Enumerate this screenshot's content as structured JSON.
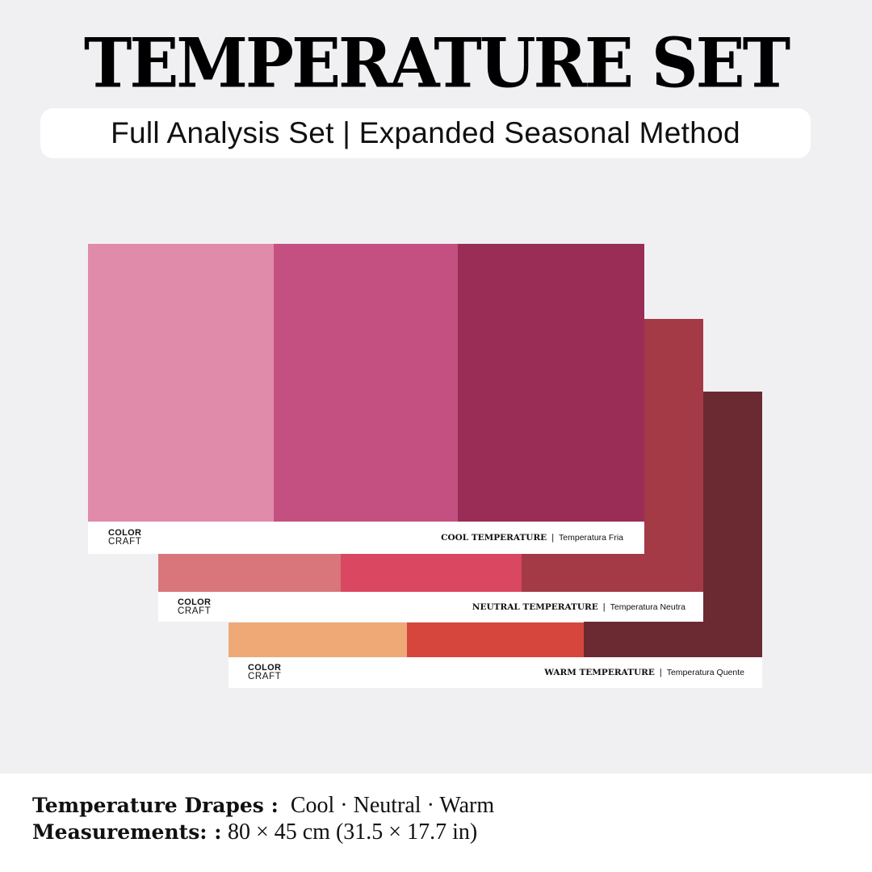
{
  "header": {
    "title": "TEMPERATURE SET",
    "subtitle": "Full Analysis Set | Expanded Seasonal Method"
  },
  "drapes": {
    "warm": {
      "brand_line1": "COLOR",
      "brand_line2": "CRAFT",
      "label": "WARM TEMPERATURE",
      "separator": "|",
      "sublabel": "Temperatura Quente",
      "colors": [
        "#eea977",
        "#d6463c",
        "#6b2a32"
      ]
    },
    "neutral": {
      "brand_line1": "COLOR",
      "brand_line2": "CRAFT",
      "label": "NEUTRAL TEMPERATURE",
      "separator": "|",
      "sublabel": "Temperatura Neutra",
      "colors": [
        "#d8767c",
        "#da4760",
        "#a33a46"
      ]
    },
    "cool": {
      "brand_line1": "COLOR",
      "brand_line2": "CRAFT",
      "label": "COOL TEMPERATURE",
      "separator": "|",
      "sublabel": "Temperatura Fria",
      "colors": [
        "#e08ba9",
        "#c45081",
        "#9a2d56"
      ]
    }
  },
  "specs": {
    "drapes_key": "Temperature Drapes :",
    "drapes_value": "Cool · Neutral · Warm",
    "measurements_key": "Measurements: :",
    "measurements_value": "80 × 45 cm (31.5 × 17.7 in)"
  },
  "colors": {
    "background": "#f0f0f2",
    "text": "#111111"
  }
}
